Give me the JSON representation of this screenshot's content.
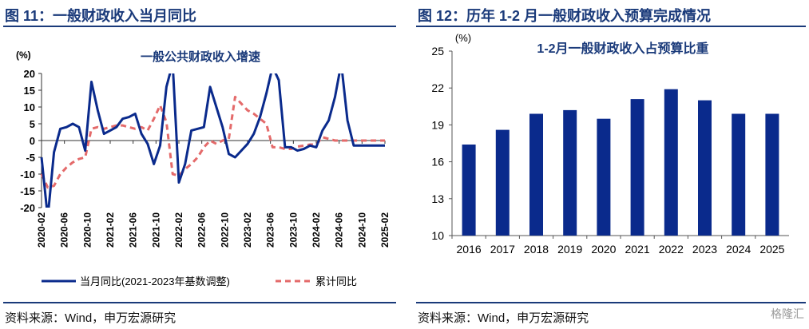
{
  "left": {
    "figure_title": "图 11：一般财政收入当月同比",
    "source": "资料来源：Wind，申万宏源研究"
  },
  "right": {
    "figure_title": "图 12：历年 1-2 月一般财政收入预算完成情况",
    "source": "资料来源：Wind，申万宏源研究"
  },
  "watermark": "格隆汇",
  "colors": {
    "title": "#1a3a7a",
    "series_main": "#0a2a8c",
    "series_cum": "#e46a6a",
    "bar": "#0a2a8c"
  },
  "chart_data": [
    {
      "type": "line",
      "title": "一般公共财政收入增速",
      "ylabel": "(%)",
      "ylim": [
        -20,
        20
      ],
      "yticks": [
        -20,
        -15,
        -10,
        -5,
        0,
        5,
        10,
        15,
        20
      ],
      "xtick_labels": [
        "2020-02",
        "2020-06",
        "2020-10",
        "2021-02",
        "2021-06",
        "2021-10",
        "2022-02",
        "2022-06",
        "2022-10",
        "2023-02",
        "2023-06",
        "2023-10",
        "2024-02",
        "2024-06",
        "2024-10",
        "2025-02"
      ],
      "legend_position": "bottom",
      "x": [
        "2020-02",
        "2020-03",
        "2020-04",
        "2020-05",
        "2020-06",
        "2020-07",
        "2020-08",
        "2020-09",
        "2020-10",
        "2020-11",
        "2020-12",
        "2021-02",
        "2021-03",
        "2021-04",
        "2021-05",
        "2021-06",
        "2021-07",
        "2021-08",
        "2021-09",
        "2021-10",
        "2021-11",
        "2021-12",
        "2022-02",
        "2022-03",
        "2022-04",
        "2022-05",
        "2022-06",
        "2022-07",
        "2022-08",
        "2022-09",
        "2022-10",
        "2022-11",
        "2022-12",
        "2023-02",
        "2023-03",
        "2023-04",
        "2023-05",
        "2023-06",
        "2023-07",
        "2023-08",
        "2023-09",
        "2023-10",
        "2023-11",
        "2023-12",
        "2024-02",
        "2024-03",
        "2024-04",
        "2024-05",
        "2024-06",
        "2024-07",
        "2024-08",
        "2024-09",
        "2024-10",
        "2024-11",
        "2024-12",
        "2025-02"
      ],
      "series": [
        {
          "name": "当月同比(2021-2023年基数调整)",
          "style": "solid",
          "values": [
            -5,
            -26,
            -3.5,
            3.5,
            4,
            5,
            4,
            -3,
            17.5,
            9,
            2,
            3,
            4,
            6.5,
            7,
            8,
            2,
            -1,
            -7,
            -1.5,
            16,
            27,
            -12.5,
            -7,
            3,
            3.5,
            4,
            16,
            10,
            4,
            -4,
            -5,
            -3,
            -1,
            2,
            7,
            14,
            22,
            18,
            -2,
            -2,
            -3,
            -2.5,
            -1.5,
            -2,
            3,
            6,
            13,
            25,
            6,
            -1.5,
            -1.5,
            -1.5,
            -1.5,
            -1.5,
            -1.5
          ]
        },
        {
          "name": "累计同比",
          "style": "dashed",
          "values": [
            -10,
            -14,
            -13.5,
            -10,
            -8,
            -6.5,
            -5.5,
            -5,
            3.5,
            4,
            3.5,
            4,
            4.5,
            4.5,
            4,
            3.5,
            4,
            3,
            6.5,
            10.5,
            5.5,
            -10,
            -10.5,
            -8.5,
            -7,
            -5,
            -2,
            0,
            -1,
            0,
            0.5,
            13,
            11,
            9,
            8,
            6.5,
            5,
            -2,
            -2,
            -2.5,
            -2.5,
            -1.8,
            -1.5,
            -1.2,
            -1.2,
            1,
            0.5,
            0,
            0,
            0,
            0,
            0,
            0,
            0,
            0,
            0
          ]
        }
      ]
    },
    {
      "type": "bar",
      "title": "1-2月一般财政收入占预算比重",
      "ylabel": "(%)",
      "ylim": [
        10,
        25
      ],
      "yticks": [
        10,
        13,
        16,
        19,
        22,
        25
      ],
      "categories": [
        "2016",
        "2017",
        "2018",
        "2019",
        "2020",
        "2021",
        "2022",
        "2023",
        "2024",
        "2025"
      ],
      "values": [
        17.4,
        18.6,
        19.9,
        20.2,
        19.5,
        21.1,
        21.9,
        21.0,
        19.9,
        19.9
      ]
    }
  ]
}
